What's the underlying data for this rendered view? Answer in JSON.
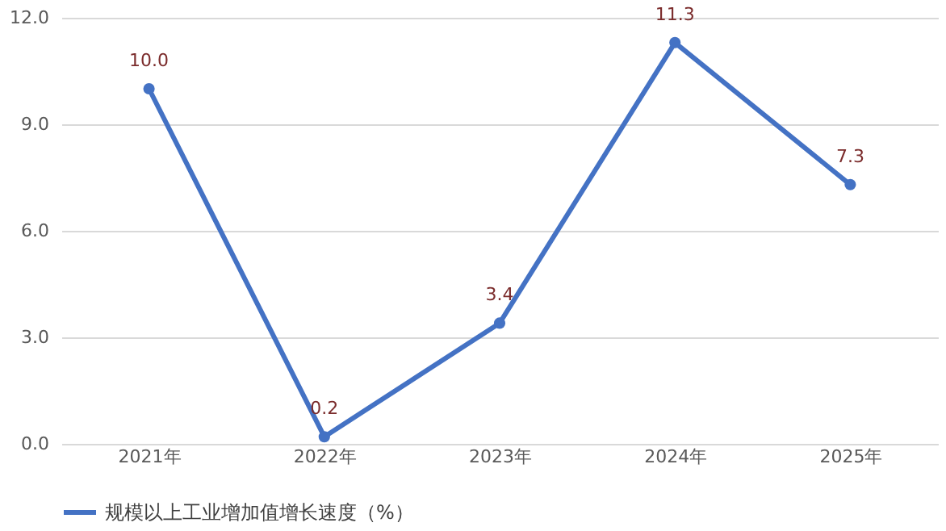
{
  "chart_data": {
    "type": "line",
    "categories": [
      "2021年",
      "2022年",
      "2023年",
      "2024年",
      "2025年"
    ],
    "series": [
      {
        "name": "规模以上工业增加值增长速度（%）",
        "color": "#4472c4",
        "values": [
          10.0,
          0.2,
          3.4,
          11.3,
          7.3
        ],
        "value_labels": [
          "10.0",
          "0.2",
          "3.4",
          "11.3",
          "7.3"
        ]
      }
    ],
    "ylim": [
      0,
      12
    ],
    "yticks": [
      {
        "value": 0,
        "label": "0.0"
      },
      {
        "value": 3,
        "label": "3.0"
      },
      {
        "value": 6,
        "label": "6.0"
      },
      {
        "value": 9,
        "label": "9.0"
      },
      {
        "value": 12,
        "label": "12.0"
      }
    ],
    "grid": "y",
    "legend": "bottom",
    "marker": "circle",
    "line_style": "solid"
  }
}
